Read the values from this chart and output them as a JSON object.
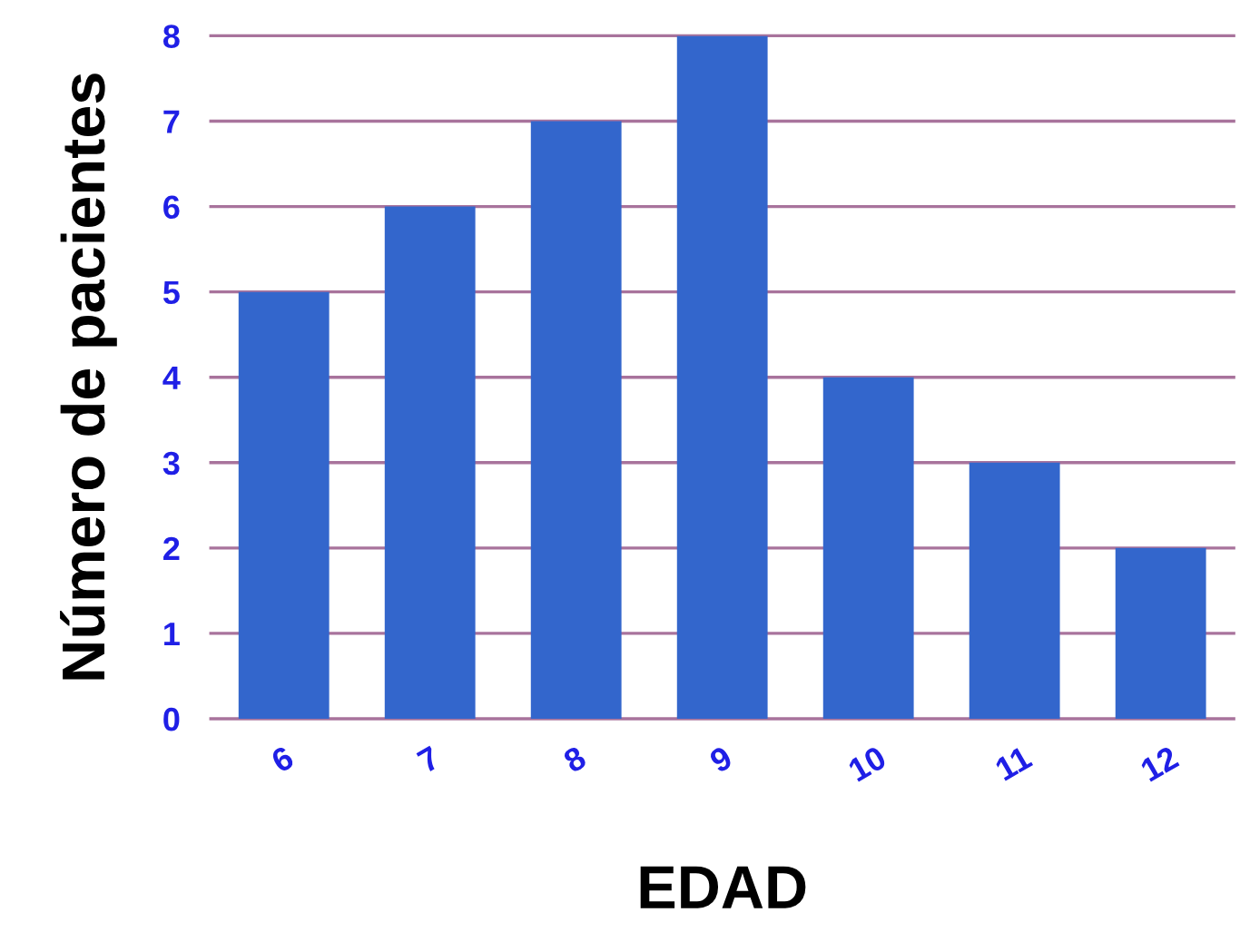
{
  "chart_data": {
    "type": "bar",
    "xlabel": "EDAD",
    "ylabel": "Número de pacientes",
    "categories": [
      "6",
      "7",
      "8",
      "9",
      "10",
      "11",
      "12"
    ],
    "values": [
      5,
      6,
      7,
      8,
      4,
      3,
      2
    ],
    "color": "#3366cc",
    "ylim": [
      0,
      8
    ],
    "yticks": [
      0,
      1,
      2,
      3,
      4,
      5,
      6,
      7,
      8
    ],
    "grid": "y"
  }
}
